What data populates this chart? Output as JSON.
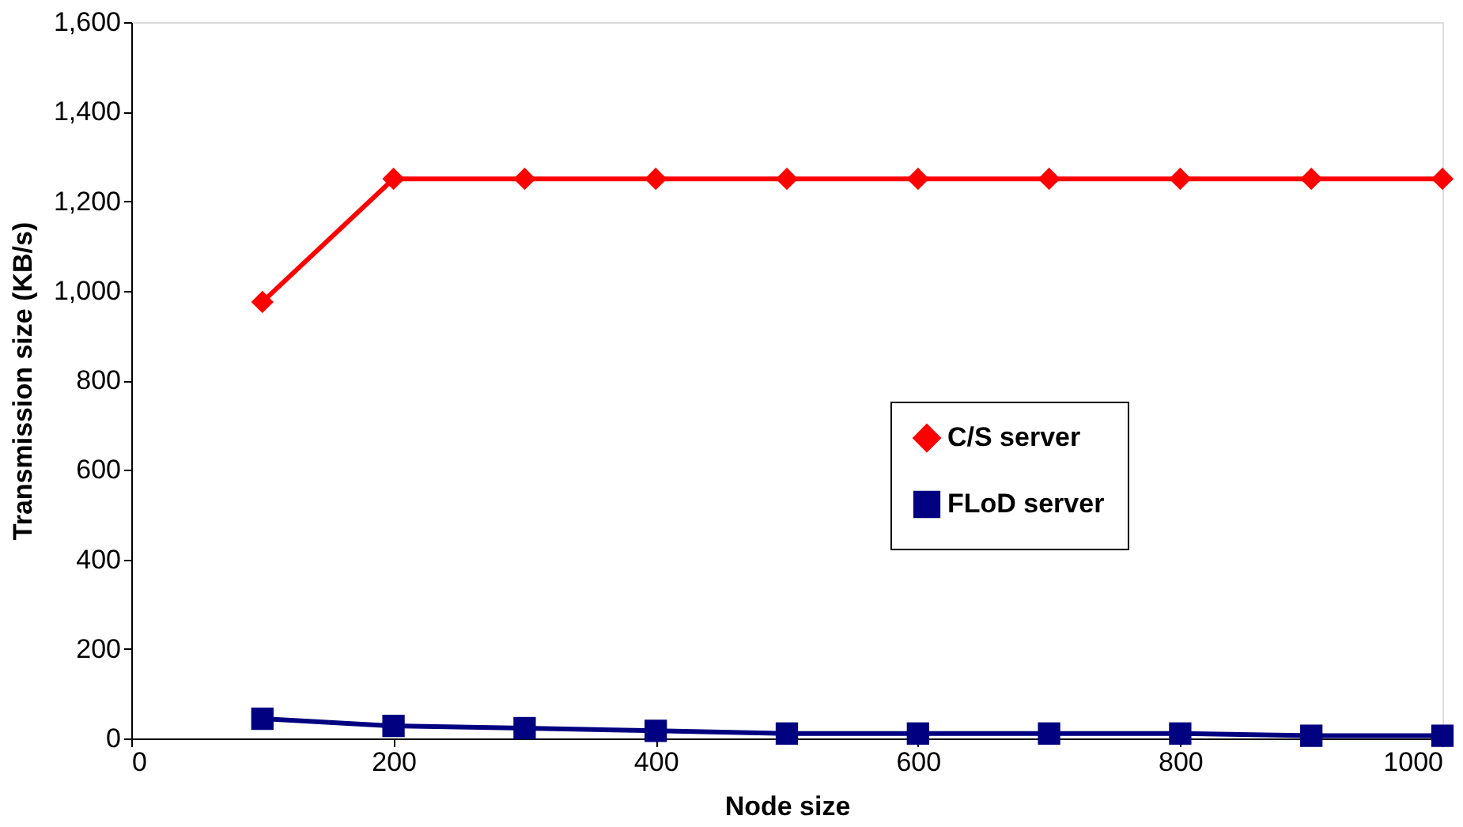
{
  "chart_data": {
    "type": "line",
    "xlabel": "Node size",
    "ylabel": "Transmission size (KB/s)",
    "x": [
      100,
      200,
      300,
      400,
      500,
      600,
      700,
      800,
      900,
      1000
    ],
    "series": [
      {
        "name": "C/S server",
        "color": "#ff0000",
        "marker": "diamond",
        "values": [
          975,
          1250,
          1250,
          1250,
          1250,
          1250,
          1250,
          1250,
          1250,
          1250
        ]
      },
      {
        "name": "FLoD server",
        "color": "#000080",
        "marker": "square",
        "values": [
          44,
          28,
          23,
          17,
          11,
          11,
          11,
          11,
          6,
          6
        ]
      }
    ],
    "xlim": [
      0,
      1000
    ],
    "xticks": [
      0,
      200,
      400,
      600,
      800,
      1000
    ],
    "ylim": [
      0,
      1600
    ],
    "yticks": [
      0,
      200,
      400,
      600,
      800,
      {
        "value": 1000,
        "label": "1,000"
      },
      {
        "value": 1200,
        "label": "1,200"
      },
      {
        "value": 1400,
        "label": "1,400"
      },
      {
        "value": 1600,
        "label": "1,600"
      }
    ],
    "grid": false,
    "legend": "right",
    "line_style": "solid"
  }
}
